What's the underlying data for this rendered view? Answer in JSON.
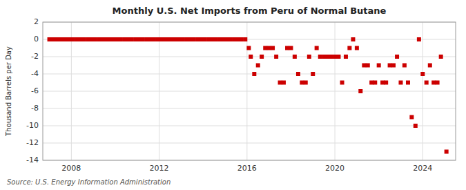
{
  "chart_data": {
    "type": "scatter",
    "title": "Monthly U.S. Net Imports from Peru of Normal Butane",
    "ylabel": "Thousand Barrels per Day",
    "source": "Source: U.S. Energy Information Administration",
    "color": "#cc0000",
    "marker": "square",
    "grid": true,
    "xlim": [
      2006.7,
      2025.5
    ],
    "xticks": [
      2008,
      2012,
      2016,
      2020,
      2024
    ],
    "ylim": [
      -14,
      2
    ],
    "yticks": [
      2,
      0,
      -2,
      -4,
      -6,
      -8,
      -10,
      -12,
      -14
    ],
    "x": [
      2007.0,
      2007.17,
      2007.25,
      2007.42,
      2007.58,
      2007.75,
      2007.92,
      2008.08,
      2008.25,
      2008.42,
      2008.58,
      2008.75,
      2008.92,
      2009.08,
      2009.25,
      2009.42,
      2009.58,
      2009.75,
      2009.92,
      2010.08,
      2010.25,
      2010.42,
      2010.58,
      2010.75,
      2010.92,
      2011.08,
      2011.25,
      2011.42,
      2011.58,
      2011.75,
      2011.92,
      2012.08,
      2012.25,
      2012.42,
      2012.58,
      2012.75,
      2012.92,
      2013.08,
      2013.25,
      2013.42,
      2013.58,
      2013.75,
      2013.92,
      2014.08,
      2014.25,
      2014.42,
      2014.58,
      2014.75,
      2014.92,
      2015.08,
      2015.25,
      2015.42,
      2015.58,
      2015.75,
      2015.92,
      2016.08,
      2016.17,
      2016.33,
      2016.5,
      2016.67,
      2016.83,
      2017.0,
      2017.17,
      2017.33,
      2017.5,
      2017.67,
      2017.83,
      2018.0,
      2018.17,
      2018.33,
      2018.5,
      2018.67,
      2018.83,
      2019.0,
      2019.17,
      2019.33,
      2019.5,
      2019.67,
      2019.83,
      2020.0,
      2020.17,
      2020.33,
      2020.5,
      2020.67,
      2020.83,
      2021.0,
      2021.17,
      2021.33,
      2021.5,
      2021.67,
      2021.83,
      2022.0,
      2022.17,
      2022.33,
      2022.5,
      2022.67,
      2022.83,
      2023.0,
      2023.17,
      2023.33,
      2023.5,
      2023.67,
      2023.83,
      2024.0,
      2024.17,
      2024.33,
      2024.5,
      2024.67,
      2024.83,
      2025.08
    ],
    "values": [
      0,
      0,
      0,
      0,
      0,
      0,
      0,
      0,
      0,
      0,
      0,
      0,
      0,
      0,
      0,
      0,
      0,
      0,
      0,
      0,
      0,
      0,
      0,
      0,
      0,
      0,
      0,
      0,
      0,
      0,
      0,
      0,
      0,
      0,
      0,
      0,
      0,
      0,
      0,
      0,
      0,
      0,
      0,
      0,
      0,
      0,
      0,
      0,
      0,
      0,
      0,
      0,
      0,
      0,
      0,
      -1,
      -2,
      -4,
      -3,
      -2,
      -1,
      -1,
      -1,
      -2,
      -5,
      -5,
      -1,
      -1,
      -2,
      -4,
      -5,
      -5,
      -2,
      -4,
      -1,
      -2,
      -2,
      -2,
      -2,
      -2,
      -2,
      -5,
      -2,
      -1,
      0,
      -1,
      -6,
      -3,
      -3,
      -5,
      -5,
      -3,
      -5,
      -5,
      -3,
      -3,
      -2,
      -5,
      -3,
      -5,
      -9,
      -10,
      0,
      -4,
      -5,
      -3,
      -5,
      -5,
      -2,
      -13
    ]
  }
}
